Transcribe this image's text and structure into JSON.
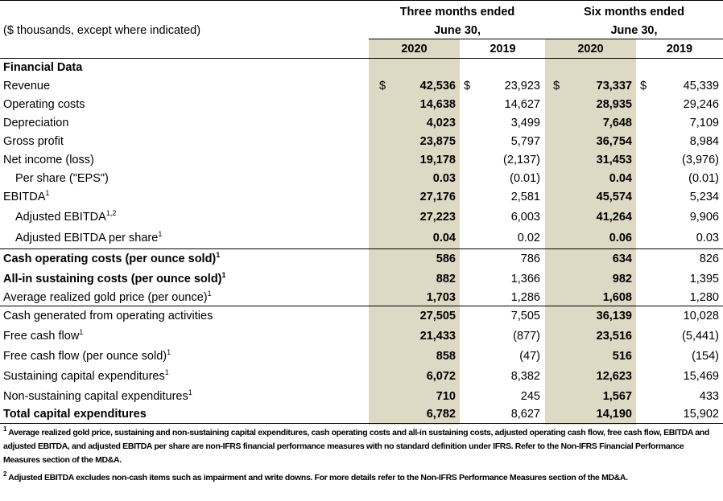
{
  "header": {
    "units_label": "($ thousands, except where indicated)",
    "group1_line1": "Three months ended",
    "group1_line2": "June 30,",
    "group2_line1": "Six months ended",
    "group2_line2": "June 30,",
    "col1": "2020",
    "col2": "2019",
    "col3": "2020",
    "col4": "2019"
  },
  "section_title": "Financial Data",
  "currency_symbol": "$",
  "rows": [
    {
      "label": "Revenue",
      "sup": "",
      "values": [
        "42,536",
        "23,923",
        "73,337",
        "45,339"
      ]
    },
    {
      "label": "Operating costs",
      "sup": "",
      "values": [
        "14,638",
        "14,627",
        "28,935",
        "29,246"
      ]
    },
    {
      "label": "Depreciation",
      "sup": "",
      "values": [
        "4,023",
        "3,499",
        "7,648",
        "7,109"
      ]
    },
    {
      "label": "Gross profit",
      "sup": "",
      "values": [
        "23,875",
        "5,797",
        "36,754",
        "8,984"
      ]
    },
    {
      "label": "Net income (loss)",
      "sup": "",
      "values": [
        "19,178",
        "(2,137)",
        "31,453",
        "(3,976)"
      ]
    },
    {
      "label": "Per share (\"EPS\")",
      "sup": "",
      "values": [
        "0.03",
        "(0.01)",
        "0.04",
        "(0.01)"
      ]
    },
    {
      "label": "EBITDA",
      "sup": "1",
      "values": [
        "27,176",
        "2,581",
        "45,574",
        "5,234"
      ]
    },
    {
      "label": "Adjusted EBITDA",
      "sup": "1,2",
      "values": [
        "27,223",
        "6,003",
        "41,264",
        "9,906"
      ]
    },
    {
      "label": "Adjusted EBITDA per share",
      "sup": "1",
      "values": [
        "0.04",
        "0.02",
        "0.06",
        "0.03"
      ]
    },
    {
      "label": "Cash operating costs (per ounce sold)",
      "sup": "1",
      "values": [
        "586",
        "786",
        "634",
        "826"
      ]
    },
    {
      "label": "All-in sustaining costs (per ounce sold)",
      "sup": "1",
      "values": [
        "882",
        "1,366",
        "982",
        "1,395"
      ]
    },
    {
      "label": "Average realized gold price (per ounce)",
      "sup": "1",
      "values": [
        "1,703",
        "1,286",
        "1,608",
        "1,280"
      ]
    },
    {
      "label": "Cash generated from operating activities",
      "sup": "",
      "values": [
        "27,505",
        "7,505",
        "36,139",
        "10,028"
      ]
    },
    {
      "label": "Free cash flow",
      "sup": "1",
      "values": [
        "21,433",
        "(877)",
        "23,516",
        "(5,441)"
      ]
    },
    {
      "label": "Free cash flow (per ounce sold)",
      "sup": "1",
      "values": [
        "858",
        "(47)",
        "516",
        "(154)"
      ]
    },
    {
      "label": "Sustaining capital expenditures",
      "sup": "1",
      "values": [
        "6,072",
        "8,382",
        "12,623",
        "15,469"
      ]
    },
    {
      "label": "Non-sustaining capital expenditures",
      "sup": "1",
      "values": [
        "710",
        "245",
        "1,567",
        "433"
      ]
    },
    {
      "label": "Total capital expenditures",
      "sup": "",
      "values": [
        "6,782",
        "8,627",
        "14,190",
        "15,902"
      ]
    }
  ],
  "footnotes": [
    {
      "mark": "1",
      "text": "Average realized gold price, sustaining and non-sustaining capital expenditures, cash operating costs and all-in sustaining costs, adjusted operating cash flow, free cash flow, EBITDA and adjusted EBITDA, and adjusted EBITDA per share are non-IFRS financial performance measures with no standard definition under IFRS. Refer to the Non-IFRS Financial Performance Measures section of the MD&A."
    },
    {
      "mark": "2",
      "text": "Adjusted EBITDA excludes non-cash items such as impairment and write downs. For more details refer to the Non-IFRS Performance Measures section of the MD&A."
    }
  ]
}
